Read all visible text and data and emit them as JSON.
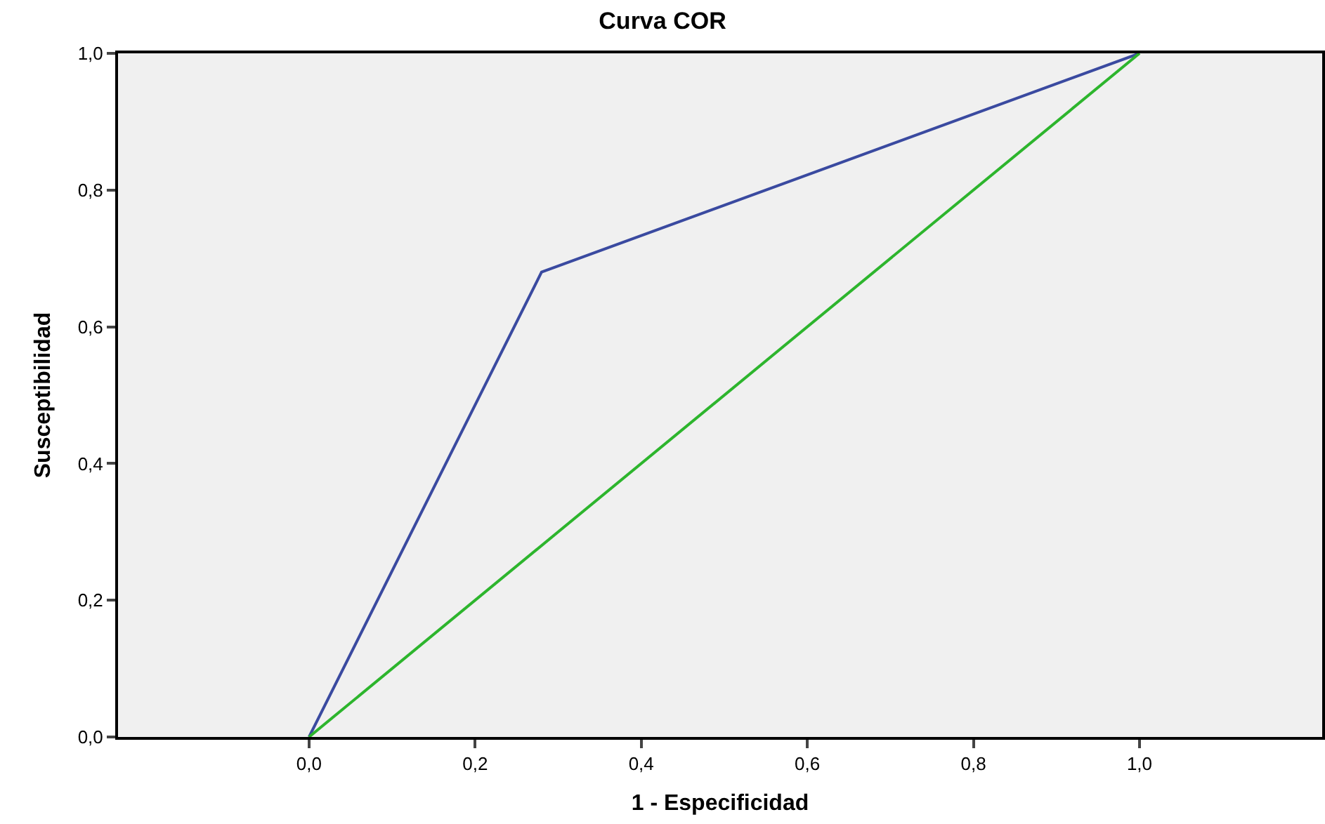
{
  "chart_data": {
    "type": "line",
    "title": "Curva COR",
    "xlabel": "1 - Especificidad",
    "ylabel": "Susceptibilidad",
    "series": [
      {
        "color": "#3a4aa0",
        "x": [
          0,
          0.28,
          1
        ],
        "values": [
          0,
          0.68,
          1
        ]
      },
      {
        "color": "#2db52d",
        "x": [
          0,
          1
        ],
        "values": [
          0,
          1
        ]
      }
    ],
    "xlim": [
      -0.23,
      1.22
    ],
    "ylim": [
      0,
      1
    ],
    "xticks": [
      {
        "value": 0,
        "label": "0,0"
      },
      {
        "value": 0.2,
        "label": "0,2"
      },
      {
        "value": 0.4,
        "label": "0,4"
      },
      {
        "value": 0.6,
        "label": "0,6"
      },
      {
        "value": 0.8,
        "label": "0,8"
      },
      {
        "value": 1,
        "label": "1,0"
      }
    ],
    "yticks": [
      {
        "value": 0,
        "label": "0,0"
      },
      {
        "value": 0.2,
        "label": "0,2"
      },
      {
        "value": 0.4,
        "label": "0,4"
      },
      {
        "value": 0.6,
        "label": "0,6"
      },
      {
        "value": 0.8,
        "label": "0,8"
      },
      {
        "value": 1,
        "label": "1,0"
      }
    ],
    "grid": false,
    "marker": "none",
    "line_style": "solid"
  }
}
